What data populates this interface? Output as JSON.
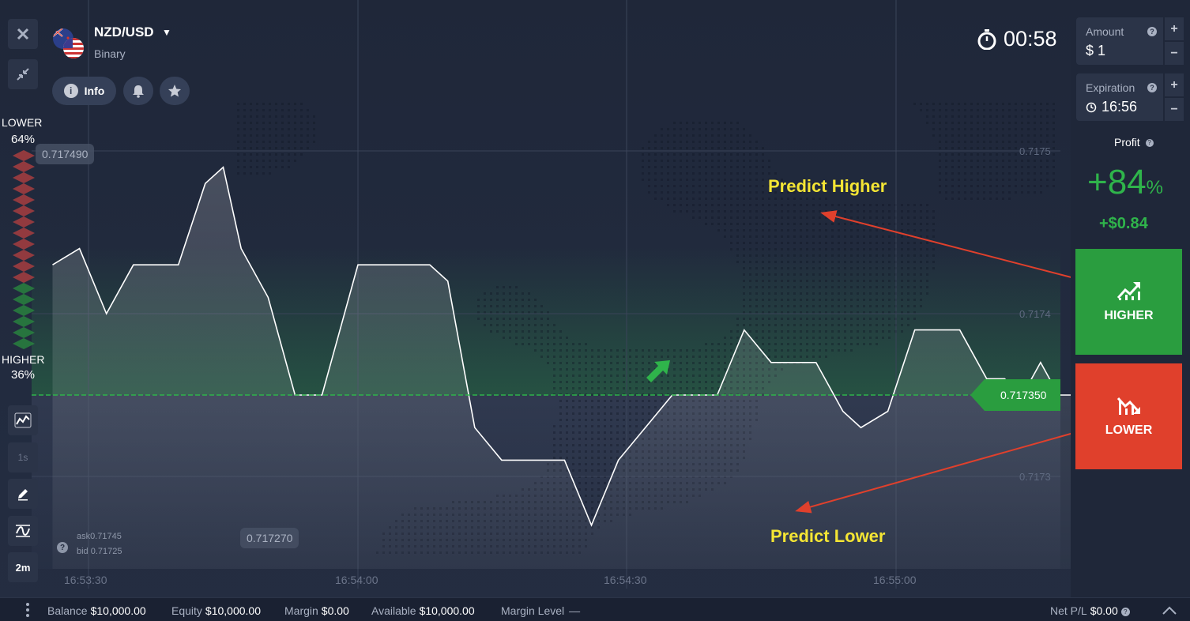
{
  "asset": {
    "name": "NZD/USD",
    "type": "Binary",
    "flags": [
      "nz-flag-icon",
      "us-flag-icon"
    ]
  },
  "header_buttons": {
    "info_label": "Info",
    "alert_icon": "bell-icon",
    "favorite_icon": "star-icon"
  },
  "toolbar": {
    "close_icon": "close-icon",
    "collapse_icon": "collapse-icon",
    "chart_type_icon": "line-chart-icon",
    "interval_label": "1s",
    "draw_icon": "pencil-icon",
    "indicator_icon": "indicator-icon",
    "timeframe_label": "2m"
  },
  "sentiment": {
    "lower_label": "LOWER",
    "lower_pct": "64%",
    "higher_label": "HIGHER",
    "higher_pct": "36%"
  },
  "timer": {
    "icon": "stopwatch-icon",
    "value": "00:58"
  },
  "chart": {
    "y_ticks": [
      "0.7175",
      "0.7174",
      "0.7173"
    ],
    "x_ticks": [
      "16:53:30",
      "16:54:00",
      "16:54:30",
      "16:55:00"
    ],
    "max_label": "0.717490",
    "min_label": "0.717270",
    "current_price": "0.717350",
    "ask": "ask0.71745",
    "bid": "bid 0.71725",
    "line_color": "#ffffff",
    "strike_color": "#2fb44b",
    "series": [
      [
        0,
        0.71743
      ],
      [
        3,
        0.71744
      ],
      [
        6,
        0.7174
      ],
      [
        9,
        0.71743
      ],
      [
        12,
        0.71743
      ],
      [
        14,
        0.71743
      ],
      [
        17,
        0.71748
      ],
      [
        19,
        0.71749
      ],
      [
        21,
        0.71744
      ],
      [
        24,
        0.71741
      ],
      [
        27,
        0.71735
      ],
      [
        30,
        0.71735
      ],
      [
        34,
        0.71743
      ],
      [
        38,
        0.71743
      ],
      [
        42,
        0.71743
      ],
      [
        44,
        0.71742
      ],
      [
        47,
        0.71733
      ],
      [
        50,
        0.71731
      ],
      [
        53,
        0.71731
      ],
      [
        57,
        0.71731
      ],
      [
        60,
        0.71727
      ],
      [
        63,
        0.71731
      ],
      [
        66,
        0.71733
      ],
      [
        69,
        0.71735
      ],
      [
        74,
        0.71735
      ],
      [
        77,
        0.71739
      ],
      [
        80,
        0.71737
      ],
      [
        85,
        0.71737
      ],
      [
        88,
        0.71734
      ],
      [
        90,
        0.71733
      ],
      [
        93,
        0.71734
      ],
      [
        96,
        0.71739
      ],
      [
        101,
        0.71739
      ],
      [
        104,
        0.71736
      ],
      [
        106,
        0.71736
      ],
      [
        108,
        0.71735
      ],
      [
        110,
        0.71737
      ],
      [
        112,
        0.71735
      ],
      [
        115,
        0.71735
      ],
      [
        119,
        0.71739
      ],
      [
        121,
        0.71737
      ],
      [
        123,
        0.71737
      ],
      [
        125,
        0.71735
      ]
    ]
  },
  "annotations": {
    "higher": "Predict Higher",
    "lower": "Predict Lower"
  },
  "trade_panel": {
    "amount_label": "Amount",
    "amount_value": "$ 1",
    "expiration_label": "Expiration",
    "expiration_value": "16:56",
    "profit_label": "Profit",
    "profit_pct": "+84",
    "profit_pct_sign": "%",
    "profit_amount": "+$0.84",
    "higher_label": "HIGHER",
    "lower_label": "LOWER",
    "higher_color": "#2a9d3f",
    "lower_color": "#e0402c"
  },
  "bottom_bar": {
    "balance_label": "Balance",
    "balance_value": "$10,000.00",
    "equity_label": "Equity",
    "equity_value": "$10,000.00",
    "margin_label": "Margin",
    "margin_value": "$0.00",
    "available_label": "Available",
    "available_value": "$10,000.00",
    "margin_level_label": "Margin Level",
    "margin_level_value": "—",
    "netpl_label": "Net P/L",
    "netpl_value": "$0.00"
  }
}
